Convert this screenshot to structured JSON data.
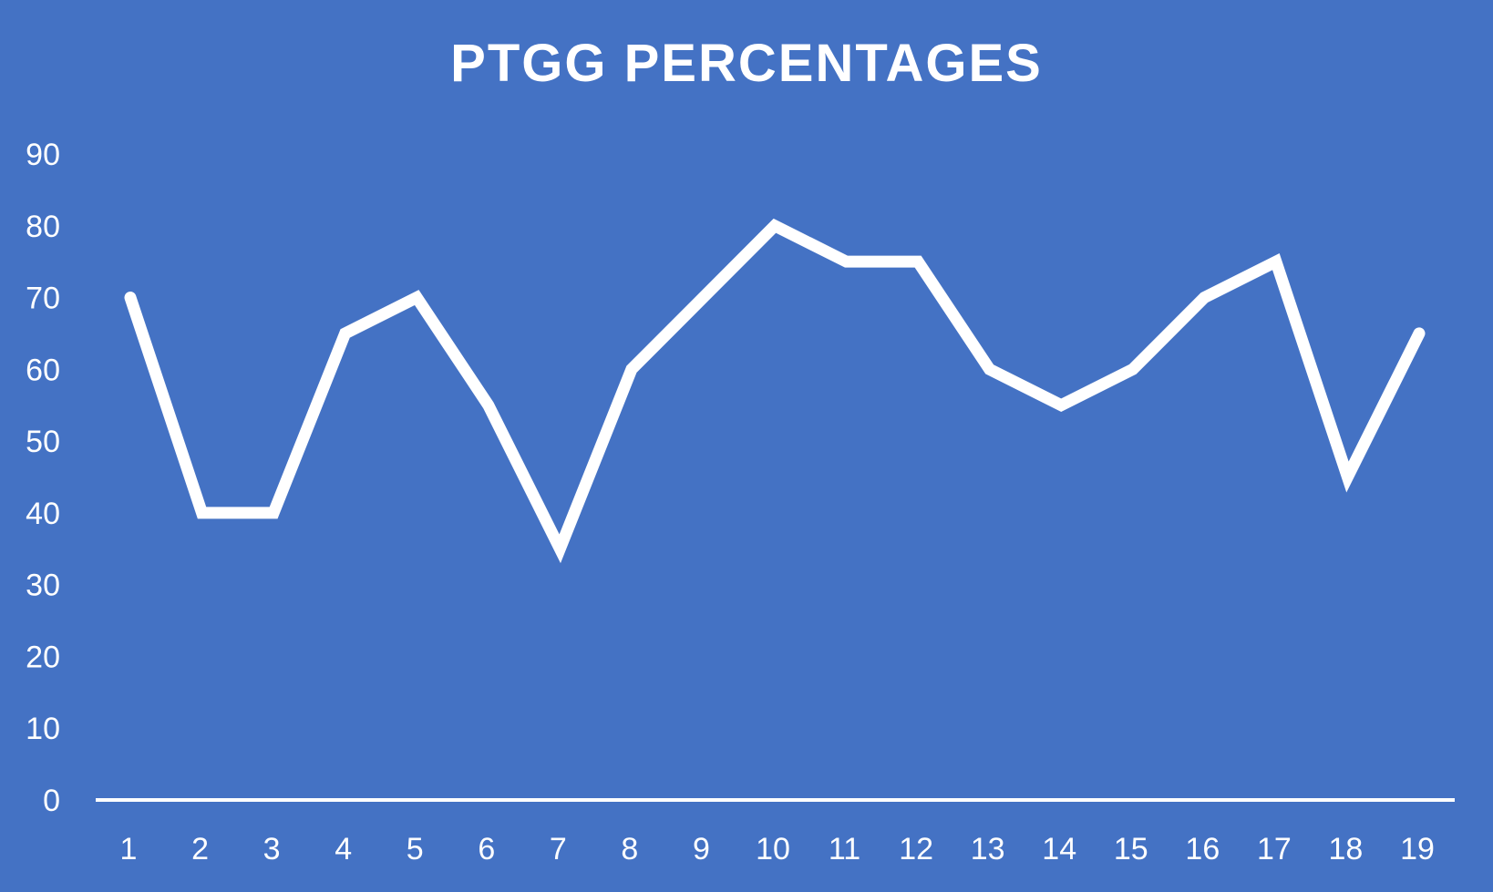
{
  "chart_data": {
    "type": "line",
    "title": "PTGG PERCENTAGES",
    "xlabel": "",
    "ylabel": "",
    "categories": [
      "1",
      "2",
      "3",
      "4",
      "5",
      "6",
      "7",
      "8",
      "9",
      "10",
      "11",
      "12",
      "13",
      "14",
      "15",
      "16",
      "17",
      "18",
      "19"
    ],
    "series": [
      {
        "values": [
          70,
          40,
          40,
          65,
          70,
          55,
          35,
          60,
          70,
          80,
          75,
          75,
          60,
          55,
          60,
          70,
          75,
          45,
          65
        ]
      }
    ],
    "ylim": [
      0,
      90
    ],
    "yticks": [
      0,
      10,
      20,
      30,
      40,
      50,
      60,
      70,
      80,
      90
    ],
    "grid": false,
    "drop_lines": true,
    "legend": "none"
  },
  "colors": {
    "background": "#4472c4",
    "line": "#ffffff",
    "text": "#ffffff"
  }
}
